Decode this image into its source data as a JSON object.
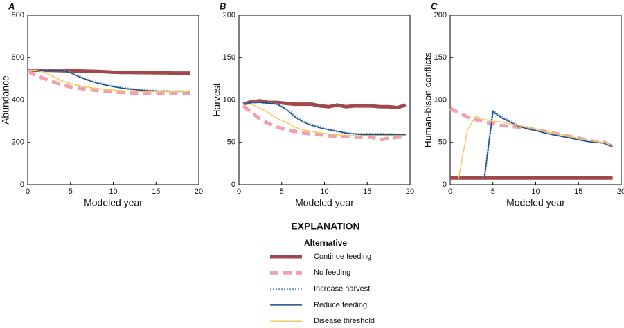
{
  "legend": {
    "title": "EXPLANATION",
    "subtitle": "Alternative"
  },
  "chart_data": [
    {
      "type": "line",
      "title": "A",
      "xlabel": "Modeled year",
      "ylabel": "Abundance",
      "xlim": [
        0,
        20
      ],
      "xticks": [
        0,
        5,
        10,
        15,
        20
      ],
      "ylim": [
        0,
        800
      ],
      "yticks": [
        0,
        200,
        400,
        600,
        800
      ],
      "x": [
        0,
        1,
        2,
        3,
        4,
        5,
        6,
        7,
        8,
        9,
        10,
        11,
        12,
        13,
        14,
        15,
        16,
        17,
        18,
        19
      ],
      "series": [
        {
          "name": "Continue feeding",
          "color": "#a0484a",
          "style": "thick-solid",
          "values": [
            540,
            540,
            540,
            539,
            538,
            537,
            537,
            536,
            535,
            533,
            531,
            530,
            530,
            529,
            529,
            528,
            528,
            527,
            527,
            527
          ]
        },
        {
          "name": "No feeding",
          "color": "#f2a0ac",
          "style": "thick-dashed",
          "values": [
            535,
            515,
            500,
            485,
            472,
            462,
            455,
            450,
            445,
            441,
            438,
            435,
            433,
            432,
            432,
            431,
            431,
            431,
            431,
            431
          ]
        },
        {
          "name": "Increase harvest",
          "color": "#6a9fd4",
          "style": "dotted",
          "values": [
            540,
            540,
            540,
            540,
            540,
            530,
            512,
            496,
            483,
            473,
            465,
            458,
            452,
            448,
            445,
            443,
            442,
            441,
            441,
            440
          ]
        },
        {
          "name": "Reduce feeding",
          "color": "#1f4e8c",
          "style": "solid",
          "values": [
            540,
            540,
            540,
            540,
            540,
            528,
            510,
            494,
            481,
            471,
            463,
            456,
            451,
            447,
            444,
            442,
            441,
            440,
            440,
            439
          ]
        },
        {
          "name": "Disease threshold",
          "color": "#f5c85a",
          "style": "solid",
          "values": [
            540,
            540,
            530,
            510,
            490,
            478,
            468,
            460,
            455,
            450,
            447,
            444,
            442,
            441,
            440,
            440,
            439,
            439,
            439,
            439
          ]
        }
      ]
    },
    {
      "type": "line",
      "title": "B",
      "xlabel": "Modeled year",
      "ylabel": "Harvest",
      "xlim": [
        0,
        20
      ],
      "xticks": [
        0,
        5,
        10,
        15,
        20
      ],
      "ylim": [
        0,
        200
      ],
      "yticks": [
        0,
        50,
        100,
        150,
        200
      ],
      "x": [
        0.5,
        1.5,
        2.5,
        3.5,
        4.5,
        5.5,
        6.5,
        7.5,
        8.5,
        9.5,
        10.5,
        11.5,
        12.5,
        13.5,
        14.5,
        15.5,
        16.5,
        17.5,
        18.5,
        19.5
      ],
      "series": [
        {
          "name": "Continue feeding",
          "color": "#a0484a",
          "style": "thick-solid",
          "values": [
            95,
            98,
            99,
            97,
            97,
            96,
            95,
            95,
            95,
            93,
            92,
            94,
            92,
            93,
            93,
            93,
            92,
            92,
            91,
            94
          ]
        },
        {
          "name": "No feeding",
          "color": "#f2a0ac",
          "style": "thick-dashed",
          "values": [
            93,
            85,
            77,
            72,
            68,
            65,
            63,
            61,
            60,
            59,
            58,
            57,
            57,
            56,
            56,
            56,
            53,
            55,
            56,
            57
          ]
        },
        {
          "name": "Increase harvest",
          "color": "#6a9fd4",
          "style": "dotted",
          "values": [
            95,
            97,
            97,
            96,
            95,
            90,
            82,
            75,
            71,
            68,
            65,
            63,
            61,
            60,
            60,
            60,
            60,
            60,
            59,
            59
          ]
        },
        {
          "name": "Reduce feeding",
          "color": "#1f4e8c",
          "style": "solid",
          "values": [
            95,
            97,
            97,
            96,
            95,
            89,
            80,
            74,
            70,
            67,
            65,
            63,
            61,
            60,
            59,
            59,
            59,
            59,
            59,
            59
          ]
        },
        {
          "name": "Disease threshold",
          "color": "#f5c85a",
          "style": "solid",
          "values": [
            95,
            95,
            90,
            85,
            78,
            74,
            68,
            65,
            63,
            61,
            60,
            59,
            58,
            58,
            58,
            58,
            58,
            58,
            58,
            58
          ]
        }
      ]
    },
    {
      "type": "line",
      "title": "C",
      "xlabel": "Modeled year",
      "ylabel": "Human-bison conflicts",
      "xlim": [
        0,
        20
      ],
      "xticks": [
        0,
        5,
        10,
        15,
        20
      ],
      "ylim": [
        0,
        200
      ],
      "yticks": [
        0,
        50,
        100,
        150,
        200
      ],
      "x": [
        0,
        1,
        2,
        3,
        4,
        5,
        6,
        7,
        8,
        9,
        10,
        11,
        12,
        13,
        14,
        15,
        16,
        17,
        18,
        19
      ],
      "series": [
        {
          "name": "Continue feeding",
          "color": "#a0484a",
          "style": "thick-solid",
          "values": [
            8,
            8,
            8,
            8,
            8,
            8,
            8,
            8,
            8,
            8,
            8,
            8,
            8,
            8,
            8,
            8,
            8,
            8,
            8,
            8
          ]
        },
        {
          "name": "No feeding",
          "color": "#f2a0ac",
          "style": "thick-dashed",
          "values": [
            90,
            85,
            80,
            77,
            74,
            72,
            70,
            69,
            68,
            67,
            65,
            63,
            61,
            59,
            57,
            55,
            53,
            51,
            50,
            45
          ]
        },
        {
          "name": "Increase harvest",
          "color": "#6a9fd4",
          "style": "dotted",
          "values": [
            null,
            null,
            null,
            null,
            8,
            87,
            80,
            75,
            70,
            67,
            65,
            62,
            60,
            58,
            56,
            54,
            52,
            50,
            50,
            46
          ]
        },
        {
          "name": "Reduce feeding",
          "color": "#1f4e8c",
          "style": "solid",
          "values": [
            null,
            null,
            null,
            null,
            8,
            86,
            79,
            74,
            69,
            66,
            64,
            61,
            59,
            57,
            55,
            53,
            51,
            50,
            49,
            45
          ]
        },
        {
          "name": "Disease threshold",
          "color": "#f5c85a",
          "style": "solid",
          "values": [
            null,
            8,
            64,
            81,
            77,
            75,
            74,
            72,
            70,
            68,
            66,
            63,
            61,
            59,
            57,
            55,
            53,
            51,
            50,
            46
          ]
        }
      ]
    }
  ]
}
